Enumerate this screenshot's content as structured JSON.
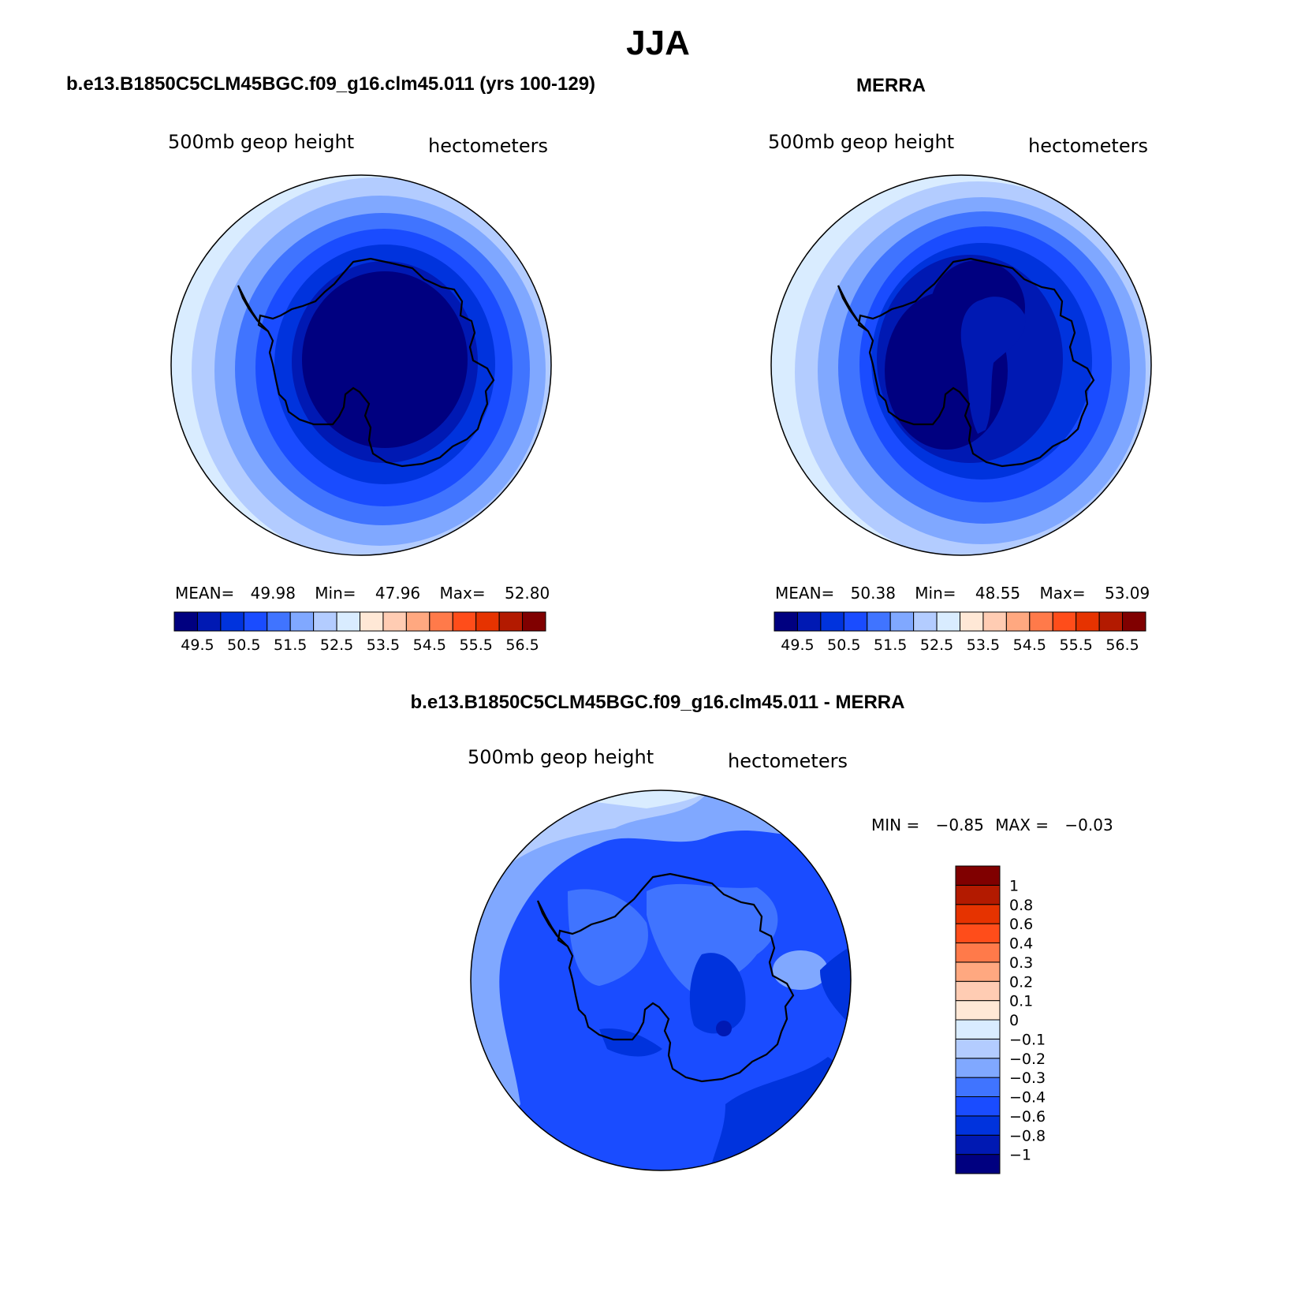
{
  "title": "JJA",
  "panels": [
    {
      "title": "b.e13.B1850C5CLM45BGC.f09_g16.clm45.011 (yrs 100-129)",
      "variable": "500mb geop height",
      "units": "hectometers",
      "stats": {
        "mean_label": "MEAN=",
        "mean": "49.98",
        "min_label": "Min=",
        "min": "47.96",
        "max_label": "Max=",
        "max": "52.80"
      }
    },
    {
      "title": "MERRA",
      "variable": "500mb geop height",
      "units": "hectometers",
      "stats": {
        "mean_label": "MEAN=",
        "mean": "50.38",
        "min_label": "Min=",
        "min": "48.55",
        "max_label": "Max=",
        "max": "53.09"
      }
    },
    {
      "title": "b.e13.B1850C5CLM45BGC.f09_g16.clm45.011 - MERRA",
      "variable": "500mb geop height",
      "units": "hectometers",
      "stats": {
        "min_label": "MIN =",
        "min": "−0.85",
        "max_label": "MAX =",
        "max": "−0.03"
      }
    }
  ],
  "colorbar_abs": {
    "colors": [
      "#000080",
      "#0019b3",
      "#0033dd",
      "#1a4cff",
      "#4074ff",
      "#80a8ff",
      "#b3ccff",
      "#d9ecff",
      "#ffe8d6",
      "#ffccb3",
      "#ffa880",
      "#ff7a4a",
      "#ff4d1a",
      "#e63300",
      "#b31a00",
      "#800000"
    ],
    "labels": [
      "49.5",
      "50.5",
      "51.5",
      "52.5",
      "53.5",
      "54.5",
      "55.5",
      "56.5"
    ]
  },
  "colorbar_diff": {
    "colors": [
      "#000080",
      "#0019b3",
      "#0033dd",
      "#1a4cff",
      "#4074ff",
      "#80a8ff",
      "#b3ccff",
      "#d9ecff",
      "#ffe8d6",
      "#ffccb3",
      "#ffa880",
      "#ff7a4a",
      "#ff4d1a",
      "#e63300",
      "#b31a00",
      "#800000"
    ],
    "labels": [
      "−1",
      "−0.8",
      "−0.6",
      "−0.4",
      "−0.3",
      "−0.2",
      "−0.1",
      "0",
      "0.1",
      "0.2",
      "0.3",
      "0.4",
      "0.6",
      "0.8",
      "1"
    ]
  }
}
